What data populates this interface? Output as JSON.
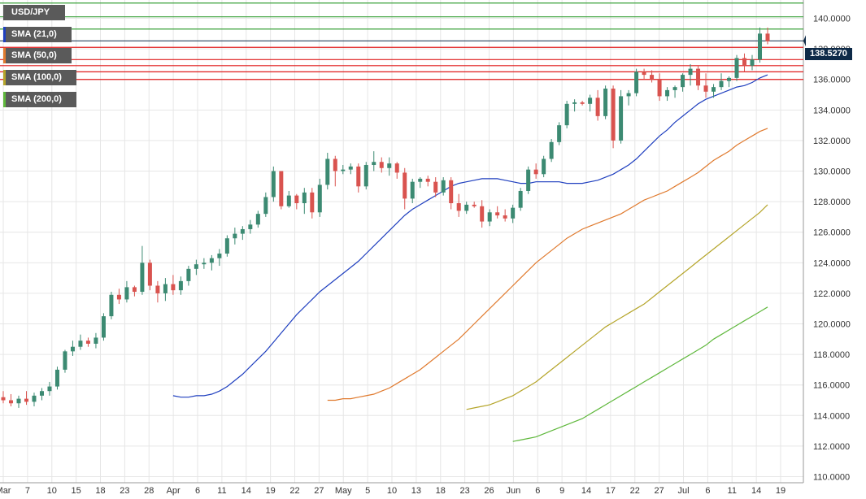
{
  "chart_data": {
    "type": "candlestick",
    "title": "USD/JPY",
    "current_price_label": "138.5270",
    "current_price": 138.527,
    "ylim": [
      109.6,
      141.2
    ],
    "y_tick_labels": [
      "110.0000",
      "112.0000",
      "114.0000",
      "116.0000",
      "118.0000",
      "120.0000",
      "122.0000",
      "124.0000",
      "126.0000",
      "128.0000",
      "130.0000",
      "132.0000",
      "134.0000",
      "136.0000",
      "138.0000",
      "140.0000"
    ],
    "x_tick_labels": [
      "Mar",
      "7",
      "10",
      "15",
      "18",
      "23",
      "28",
      "Apr",
      "6",
      "11",
      "14",
      "19",
      "22",
      "27",
      "May",
      "5",
      "10",
      "13",
      "18",
      "23",
      "26",
      "Jun",
      "6",
      "9",
      "14",
      "17",
      "22",
      "27",
      "Jul",
      "6",
      "11",
      "14",
      "19"
    ],
    "legend": [
      {
        "label": "USD/JPY",
        "color": "#5a5a5a"
      },
      {
        "label": "SMA (21,0)",
        "color": "#1f3fbf"
      },
      {
        "label": "SMA (50,0)",
        "color": "#e07a2e"
      },
      {
        "label": "SMA (100,0)",
        "color": "#b5a52a"
      },
      {
        "label": "SMA (200,0)",
        "color": "#5fb83c"
      }
    ],
    "colors": {
      "up": "#3c8a72",
      "down": "#d9534f",
      "green_levels": "#38a138",
      "red_levels": "#e01b1b",
      "price_line": "#0e2a48",
      "grid": "#e6e6e6"
    },
    "resistance_levels_green": [
      141.0,
      140.1,
      139.3
    ],
    "support_levels_red": [
      138.1,
      137.3,
      136.9,
      136.5,
      136.0
    ],
    "candles": [
      [
        115.2,
        115.6,
        114.8,
        115.0
      ],
      [
        115.0,
        115.4,
        114.6,
        114.8
      ],
      [
        114.8,
        115.3,
        114.5,
        115.1
      ],
      [
        115.1,
        115.6,
        114.7,
        114.9
      ],
      [
        114.9,
        115.5,
        114.6,
        115.3
      ],
      [
        115.3,
        115.8,
        115.0,
        115.6
      ],
      [
        115.6,
        116.2,
        115.3,
        115.9
      ],
      [
        115.9,
        117.2,
        115.7,
        117.0
      ],
      [
        117.0,
        118.3,
        116.8,
        118.2
      ],
      [
        118.2,
        118.9,
        117.9,
        118.5
      ],
      [
        118.5,
        119.3,
        118.3,
        118.9
      ],
      [
        118.9,
        119.1,
        118.5,
        118.7
      ],
      [
        118.7,
        119.4,
        118.4,
        119.1
      ],
      [
        119.1,
        120.7,
        118.9,
        120.5
      ],
      [
        120.5,
        122.1,
        120.3,
        121.9
      ],
      [
        121.9,
        122.3,
        121.3,
        121.6
      ],
      [
        121.6,
        122.8,
        121.4,
        122.4
      ],
      [
        122.4,
        122.5,
        121.8,
        122.1
      ],
      [
        122.1,
        125.1,
        121.9,
        124.0
      ],
      [
        124.0,
        124.2,
        122.2,
        122.5
      ],
      [
        122.5,
        122.8,
        121.4,
        122.0
      ],
      [
        122.0,
        123.0,
        121.5,
        122.6
      ],
      [
        122.6,
        123.2,
        121.9,
        122.2
      ],
      [
        122.2,
        123.1,
        121.9,
        122.8
      ],
      [
        122.8,
        123.8,
        122.5,
        123.6
      ],
      [
        123.6,
        124.2,
        123.2,
        123.9
      ],
      [
        123.9,
        124.3,
        123.6,
        124.0
      ],
      [
        124.0,
        124.5,
        123.5,
        124.3
      ],
      [
        124.3,
        124.9,
        123.8,
        124.6
      ],
      [
        124.6,
        125.8,
        124.4,
        125.6
      ],
      [
        125.6,
        126.3,
        125.2,
        125.9
      ],
      [
        125.9,
        126.4,
        125.5,
        126.2
      ],
      [
        126.2,
        126.8,
        125.9,
        126.5
      ],
      [
        126.5,
        127.4,
        126.3,
        127.2
      ],
      [
        127.2,
        128.6,
        127.0,
        128.3
      ],
      [
        128.3,
        130.3,
        128.0,
        130.0
      ],
      [
        130.0,
        130.0,
        127.5,
        127.7
      ],
      [
        127.7,
        128.7,
        127.6,
        128.4
      ],
      [
        128.4,
        128.5,
        127.5,
        127.9
      ],
      [
        127.9,
        128.9,
        127.2,
        128.6
      ],
      [
        128.6,
        128.9,
        126.9,
        127.3
      ],
      [
        127.3,
        129.5,
        127.0,
        129.1
      ],
      [
        129.1,
        131.2,
        128.8,
        130.8
      ],
      [
        130.8,
        131.0,
        129.0,
        130.0
      ],
      [
        130.0,
        130.4,
        129.8,
        130.1
      ],
      [
        130.1,
        130.5,
        129.8,
        130.3
      ],
      [
        130.3,
        130.5,
        128.6,
        129.0
      ],
      [
        129.0,
        130.6,
        128.8,
        130.4
      ],
      [
        130.4,
        131.3,
        130.0,
        130.6
      ],
      [
        130.6,
        130.9,
        129.9,
        130.2
      ],
      [
        130.2,
        130.9,
        129.7,
        130.5
      ],
      [
        130.5,
        130.6,
        129.5,
        129.9
      ],
      [
        129.9,
        130.2,
        127.5,
        128.2
      ],
      [
        128.2,
        129.5,
        127.9,
        129.3
      ],
      [
        129.3,
        129.6,
        128.9,
        129.5
      ],
      [
        129.5,
        129.7,
        129.0,
        129.3
      ],
      [
        129.3,
        129.6,
        128.3,
        128.6
      ],
      [
        128.6,
        129.6,
        128.4,
        129.4
      ],
      [
        129.4,
        129.6,
        127.5,
        127.9
      ],
      [
        127.9,
        128.5,
        127.0,
        127.4
      ],
      [
        127.4,
        128.0,
        127.2,
        127.8
      ],
      [
        127.8,
        128.0,
        127.6,
        127.7
      ],
      [
        127.7,
        128.1,
        126.3,
        126.7
      ],
      [
        126.7,
        127.5,
        126.4,
        127.3
      ],
      [
        127.3,
        127.7,
        126.9,
        127.1
      ],
      [
        127.1,
        127.5,
        126.7,
        126.9
      ],
      [
        126.9,
        127.8,
        126.6,
        127.6
      ],
      [
        127.6,
        128.9,
        127.4,
        128.7
      ],
      [
        128.7,
        130.3,
        128.5,
        130.1
      ],
      [
        130.1,
        130.5,
        129.5,
        129.8
      ],
      [
        129.8,
        131.0,
        129.6,
        130.8
      ],
      [
        130.8,
        132.1,
        130.6,
        131.9
      ],
      [
        131.9,
        133.2,
        131.7,
        133.0
      ],
      [
        133.0,
        134.6,
        132.8,
        134.4
      ],
      [
        134.4,
        134.7,
        133.9,
        134.5
      ],
      [
        134.5,
        134.6,
        134.3,
        134.4
      ],
      [
        134.4,
        135.0,
        133.9,
        134.8
      ],
      [
        134.8,
        135.3,
        133.3,
        133.6
      ],
      [
        133.6,
        135.6,
        133.4,
        135.4
      ],
      [
        135.4,
        135.6,
        131.5,
        132.0
      ],
      [
        132.0,
        135.3,
        131.8,
        134.9
      ],
      [
        134.9,
        135.3,
        134.3,
        135.1
      ],
      [
        135.1,
        136.7,
        134.9,
        136.5
      ],
      [
        136.5,
        136.7,
        136.0,
        136.3
      ],
      [
        136.3,
        136.6,
        135.8,
        136.0
      ],
      [
        136.0,
        136.4,
        134.6,
        134.9
      ],
      [
        134.9,
        135.5,
        134.6,
        135.3
      ],
      [
        135.3,
        135.6,
        134.8,
        135.5
      ],
      [
        135.5,
        136.4,
        135.2,
        136.3
      ],
      [
        136.3,
        137.0,
        135.6,
        136.7
      ],
      [
        136.7,
        136.9,
        135.3,
        135.6
      ],
      [
        135.6,
        136.4,
        134.8,
        135.2
      ],
      [
        135.2,
        135.7,
        134.8,
        135.5
      ],
      [
        135.5,
        136.4,
        135.3,
        135.9
      ],
      [
        135.9,
        136.2,
        135.5,
        136.1
      ],
      [
        136.1,
        137.6,
        135.9,
        137.4
      ],
      [
        137.4,
        137.7,
        136.5,
        136.9
      ],
      [
        136.9,
        137.6,
        136.6,
        137.3
      ],
      [
        137.3,
        139.4,
        137.1,
        139.0
      ],
      [
        139.0,
        139.4,
        138.3,
        138.5
      ]
    ],
    "sma_21": [
      115.3,
      115.2,
      115.2,
      115.3,
      115.3,
      115.4,
      115.6,
      115.9,
      116.3,
      116.7,
      117.2,
      117.7,
      118.2,
      118.8,
      119.4,
      120.0,
      120.6,
      121.1,
      121.6,
      122.1,
      122.5,
      122.9,
      123.3,
      123.7,
      124.1,
      124.6,
      125.1,
      125.6,
      126.1,
      126.6,
      127.1,
      127.5,
      127.8,
      128.1,
      128.4,
      128.7,
      129.0,
      129.2,
      129.3,
      129.4,
      129.5,
      129.5,
      129.5,
      129.4,
      129.3,
      129.2,
      129.2,
      129.3,
      129.3,
      129.3,
      129.3,
      129.2,
      129.2,
      129.2,
      129.3,
      129.4,
      129.6,
      129.8,
      130.1,
      130.4,
      130.8,
      131.3,
      131.8,
      132.3,
      132.7,
      133.2,
      133.6,
      134.0,
      134.4,
      134.7,
      134.9,
      135.1,
      135.3,
      135.5,
      135.6,
      135.8,
      136.1,
      136.3
    ],
    "sma_50": [
      115.0,
      115.0,
      115.1,
      115.1,
      115.2,
      115.3,
      115.4,
      115.6,
      115.8,
      116.1,
      116.4,
      116.7,
      117.0,
      117.4,
      117.8,
      118.2,
      118.6,
      119.0,
      119.5,
      120.0,
      120.5,
      121.0,
      121.5,
      122.0,
      122.5,
      123.0,
      123.5,
      124.0,
      124.4,
      124.8,
      125.2,
      125.6,
      125.9,
      126.2,
      126.4,
      126.6,
      126.8,
      127.0,
      127.2,
      127.5,
      127.8,
      128.1,
      128.3,
      128.5,
      128.7,
      129.0,
      129.3,
      129.6,
      129.9,
      130.3,
      130.7,
      131.0,
      131.3,
      131.7,
      132.0,
      132.3,
      132.6,
      132.8
    ],
    "sma_100": [
      114.4,
      114.5,
      114.6,
      114.7,
      114.9,
      115.1,
      115.3,
      115.6,
      115.9,
      116.2,
      116.6,
      117.0,
      117.4,
      117.8,
      118.2,
      118.6,
      119.0,
      119.4,
      119.8,
      120.1,
      120.4,
      120.7,
      121.0,
      121.3,
      121.7,
      122.1,
      122.5,
      122.9,
      123.3,
      123.7,
      124.1,
      124.5,
      124.9,
      125.3,
      125.7,
      126.1,
      126.5,
      126.9,
      127.3,
      127.8
    ],
    "sma_200": [
      112.3,
      112.4,
      112.5,
      112.6,
      112.8,
      113.0,
      113.2,
      113.4,
      113.6,
      113.8,
      114.1,
      114.4,
      114.7,
      115.0,
      115.3,
      115.6,
      115.9,
      116.2,
      116.5,
      116.8,
      117.1,
      117.4,
      117.7,
      118.0,
      118.3,
      118.6,
      119.0,
      119.3,
      119.6,
      119.9,
      120.2,
      120.5,
      120.8,
      121.1
    ]
  }
}
